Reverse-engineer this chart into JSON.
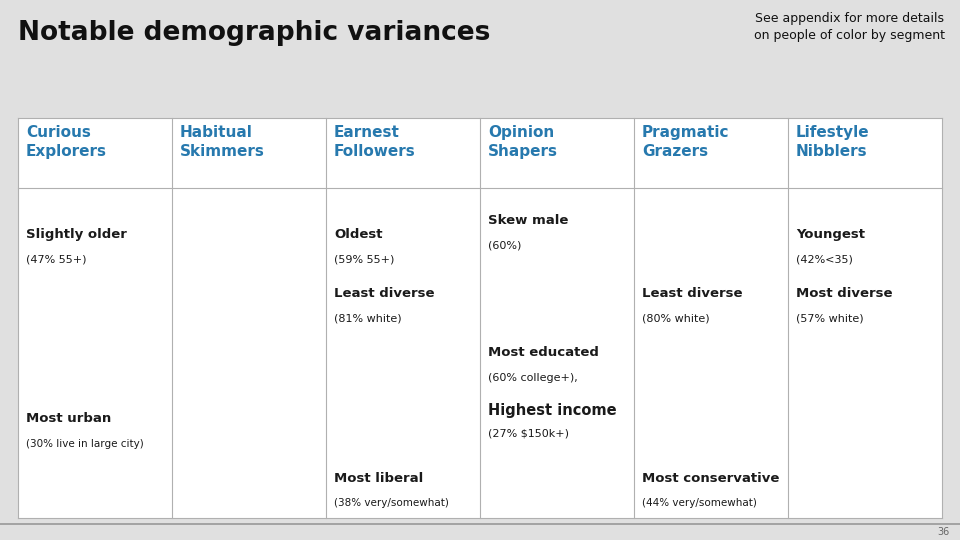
{
  "title": "Notable demographic variances",
  "subtitle": "See appendix for more details\non people of color by segment",
  "bg_color": "#e0e0e0",
  "table_bg": "#ffffff",
  "header_color": "#2779ae",
  "body_text_color": "#1a1a1a",
  "columns": [
    "Curious\nExplorers",
    "Habitual\nSkimmers",
    "Earnest\nFollowers",
    "Opinion\nShapers",
    "Pragmatic\nGrazers",
    "Lifestyle\nNibblers"
  ],
  "page_num": "36",
  "cell_contents": [
    [
      [
        0.88,
        "Slightly older",
        9.5,
        "bold",
        "#1a1a1a"
      ],
      [
        0.8,
        "(47% 55+)",
        8.0,
        "normal",
        "#1a1a1a"
      ],
      [
        0.32,
        "Most urban",
        9.5,
        "bold",
        "#1a1a1a"
      ],
      [
        0.24,
        "(30% live in large city)",
        7.5,
        "normal",
        "#1a1a1a"
      ]
    ],
    [],
    [
      [
        0.88,
        "Oldest",
        9.5,
        "bold",
        "#1a1a1a"
      ],
      [
        0.8,
        "(59% 55+)",
        8.0,
        "normal",
        "#1a1a1a"
      ],
      [
        0.7,
        "Least diverse",
        9.5,
        "bold",
        "#1a1a1a"
      ],
      [
        0.62,
        "(81% white)",
        8.0,
        "normal",
        "#1a1a1a"
      ],
      [
        0.14,
        "Most liberal",
        9.5,
        "bold",
        "#1a1a1a"
      ],
      [
        0.06,
        "(38% very/somewhat)",
        7.5,
        "normal",
        "#1a1a1a"
      ]
    ],
    [
      [
        0.92,
        "Skew male",
        9.5,
        "bold",
        "#1a1a1a"
      ],
      [
        0.84,
        "(60%)",
        8.0,
        "normal",
        "#1a1a1a"
      ],
      [
        0.52,
        "Most educated",
        9.5,
        "bold",
        "#1a1a1a"
      ],
      [
        0.44,
        "(60% college+),",
        8.0,
        "normal",
        "#1a1a1a"
      ],
      [
        0.35,
        "Highest income",
        10.5,
        "bold",
        "#1a1a1a"
      ],
      [
        0.27,
        "(27% $150k+)",
        8.0,
        "normal",
        "#1a1a1a"
      ]
    ],
    [
      [
        0.7,
        "Least diverse",
        9.5,
        "bold",
        "#1a1a1a"
      ],
      [
        0.62,
        "(80% white)",
        8.0,
        "normal",
        "#1a1a1a"
      ],
      [
        0.14,
        "Most conservative",
        9.5,
        "bold",
        "#1a1a1a"
      ],
      [
        0.06,
        "(44% very/somewhat)",
        7.5,
        "normal",
        "#1a1a1a"
      ]
    ],
    [
      [
        0.88,
        "Youngest",
        9.5,
        "bold",
        "#1a1a1a"
      ],
      [
        0.8,
        "(42%<35)",
        8.0,
        "normal",
        "#1a1a1a"
      ],
      [
        0.7,
        "Most diverse",
        9.5,
        "bold",
        "#1a1a1a"
      ],
      [
        0.62,
        "(57% white)",
        8.0,
        "normal",
        "#1a1a1a"
      ]
    ]
  ]
}
